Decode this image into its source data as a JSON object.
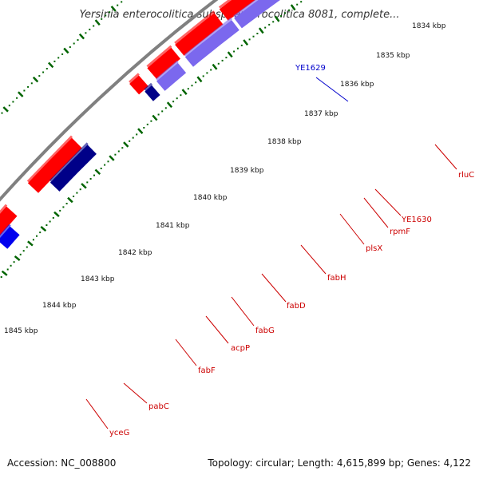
{
  "title": "Yersinia enterocolitica subsp. enterocolitica 8081, complete...",
  "accession": "Accession: NC_008800",
  "topology": "Topology: circular; Length: 4,615,899 bp; Genes: 4,122",
  "scale_labels": [
    "1834 kbp",
    "1835 kbp",
    "1836 kbp",
    "1837 kbp",
    "1838 kbp",
    "1839 kbp",
    "1840 kbp",
    "1841 kbp",
    "1842 kbp",
    "1843 kbp",
    "1844 kbp",
    "1845 kbp"
  ],
  "genes": [
    {
      "name": "rluC",
      "color": "#cc0000"
    },
    {
      "name": "YE1630",
      "color": "#cc0000"
    },
    {
      "name": "rpmF",
      "color": "#cc0000"
    },
    {
      "name": "plsX",
      "color": "#cc0000"
    },
    {
      "name": "fabH",
      "color": "#cc0000"
    },
    {
      "name": "fabD",
      "color": "#cc0000"
    },
    {
      "name": "fabG",
      "color": "#cc0000"
    },
    {
      "name": "acpP",
      "color": "#cc0000"
    },
    {
      "name": "fabF",
      "color": "#cc0000"
    },
    {
      "name": "pabC",
      "color": "#cc0000"
    },
    {
      "name": "yceG",
      "color": "#cc0000"
    },
    {
      "name": "YE1629",
      "color": "#0000cc"
    }
  ],
  "colors": {
    "red": "#ff0000",
    "pink": "#f08080",
    "blue": "#0000ee",
    "navy": "#000088",
    "slate": "#7b68ee",
    "grey": "#c0c0c0",
    "cyan": "#33ccee",
    "khaki": "#eedd88",
    "magenta": "#ff1493",
    "backbone": "#808080",
    "ticks": "#006400"
  }
}
